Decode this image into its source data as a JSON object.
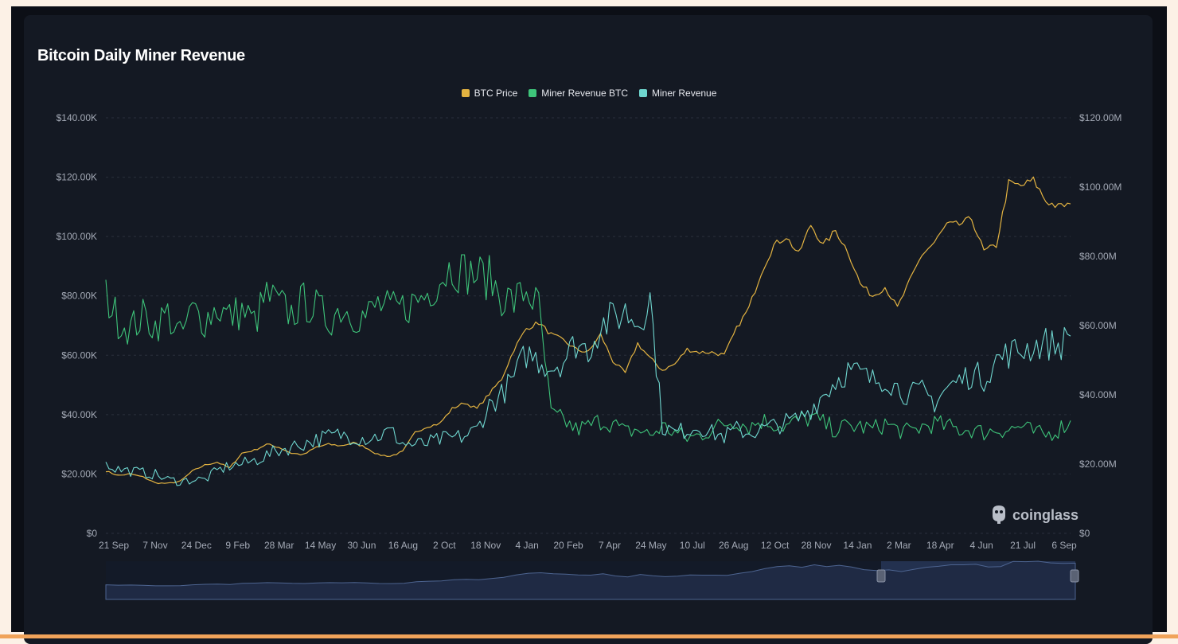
{
  "title": "Bitcoin Daily Miner Revenue",
  "legend": [
    {
      "label": "BTC Price",
      "color": "#e3b341"
    },
    {
      "label": "Miner Revenue BTC",
      "color": "#3ec47a"
    },
    {
      "label": "Miner Revenue",
      "color": "#6fd6cf"
    }
  ],
  "logo": {
    "text": "coinglass",
    "icon": "coinglass-logo-icon"
  },
  "chart_data": {
    "type": "line",
    "title": "Bitcoin Daily Miner Revenue",
    "x_ticks": [
      "21 Sep",
      "7 Nov",
      "24 Dec",
      "9 Feb",
      "28 Mar",
      "14 May",
      "30 Jun",
      "16 Aug",
      "2 Oct",
      "18 Nov",
      "4 Jan",
      "20 Feb",
      "7 Apr",
      "24 May",
      "10 Jul",
      "26 Aug",
      "12 Oct",
      "28 Nov",
      "14 Jan",
      "2 Mar",
      "18 Apr",
      "4 Jun",
      "21 Jul",
      "6 Sep"
    ],
    "y_left": {
      "ticks": [
        "$0",
        "$20.00K",
        "$40.00K",
        "$60.00K",
        "$80.00K",
        "$100.00K",
        "$120.00K",
        "$140.00K"
      ],
      "range": [
        0,
        140000
      ]
    },
    "y_right": {
      "ticks": [
        "$0",
        "$20.00M",
        "$40.00M",
        "$60.00M",
        "$80.00M",
        "$100.00M",
        "$120.00M"
      ],
      "range": [
        0,
        120000000
      ]
    },
    "grid": true,
    "legend_position": "top-center",
    "series": [
      {
        "name": "BTC Price",
        "axis": "left",
        "color": "#e3b341",
        "values": [
          21000,
          19500,
          20000,
          19000,
          17000,
          16800,
          17500,
          21000,
          23000,
          24000,
          22000,
          27000,
          28000,
          30000,
          29000,
          27000,
          26500,
          29000,
          30000,
          29500,
          30500,
          29000,
          26500,
          26000,
          27500,
          34000,
          36000,
          37000,
          42000,
          44000,
          42000,
          47000,
          52000,
          62000,
          69000,
          71000,
          67000,
          65000,
          62000,
          61000,
          67000,
          58000,
          54000,
          64000,
          59000,
          55000,
          57000,
          62000,
          61000,
          61000,
          60000,
          69000,
          76000,
          88000,
          97000,
          100000,
          94000,
          104000,
          97000,
          102000,
          95000,
          84000,
          80000,
          83000,
          76000,
          85000,
          94000,
          98000,
          104000,
          104000,
          106000,
          95000,
          97000,
          118000,
          117000,
          119000,
          112000,
          110000,
          111000
        ]
      },
      {
        "name": "Miner Revenue BTC",
        "axis": "left",
        "color": "#3ec47a",
        "values": [
          80000,
          72000,
          69000,
          73000,
          70000,
          74000,
          66000,
          75000,
          72000,
          76000,
          73000,
          75000,
          71000,
          80000,
          77000,
          74000,
          78000,
          76000,
          72000,
          76000,
          74000,
          73000,
          77000,
          75000,
          76000,
          78000,
          81000,
          86000,
          90000,
          88000,
          87000,
          86000,
          80000,
          78000,
          82000,
          76000,
          40000,
          38000,
          35000,
          36000,
          38000,
          37000,
          34000,
          35000,
          33000,
          36000,
          34000,
          32000,
          33000,
          35000,
          37000,
          38000,
          36000,
          38000,
          37000,
          36000,
          38000,
          39000,
          37000,
          35000,
          36000,
          36000,
          35000,
          37000,
          35000,
          34000,
          36000,
          37000,
          36000,
          35000,
          35000,
          34000,
          35000,
          35000,
          36000,
          34000,
          33000,
          35000,
          38000
        ]
      },
      {
        "name": "Miner Revenue",
        "axis": "right",
        "color": "#6fd6cf",
        "values": [
          20000000,
          18500000,
          18000000,
          17500000,
          17000000,
          15500000,
          15000000,
          15500000,
          15500000,
          18000000,
          19500000,
          20000000,
          21000000,
          22500000,
          24000000,
          25000000,
          26000000,
          27000000,
          28000000,
          28500000,
          28000000,
          27500000,
          28000000,
          29500000,
          26000000,
          25500000,
          26000000,
          27000000,
          27500000,
          28000000,
          30000000,
          37000000,
          40000000,
          45000000,
          52000000,
          50000000,
          48000000,
          50000000,
          55000000,
          53000000,
          60000000,
          62000000,
          64000000,
          61000000,
          68000000,
          31000000,
          29000000,
          30000000,
          31000000,
          29000000,
          28000000,
          30000000,
          29000000,
          30000000,
          31000000,
          32000000,
          33000000,
          36000000,
          40000000,
          44000000,
          47000000,
          46000000,
          44000000,
          45000000,
          42000000,
          40000000,
          41000000,
          38000000,
          42000000,
          44000000,
          46000000,
          45000000,
          50000000,
          52000000,
          53000000,
          54000000,
          55000000,
          54000000,
          57000000
        ]
      }
    ]
  }
}
